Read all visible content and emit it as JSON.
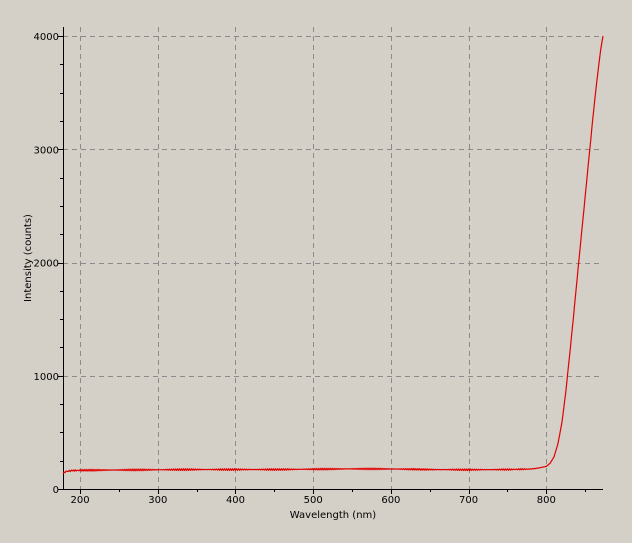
{
  "chart_data": {
    "type": "line",
    "title": "",
    "xlabel": "Wavelength (nm)",
    "ylabel": "Intensity (counts)",
    "xlim": [
      178,
      873
    ],
    "ylim": [
      0,
      4080
    ],
    "x_ticks": [
      200,
      300,
      400,
      500,
      600,
      700,
      800
    ],
    "y_ticks": [
      0,
      1000,
      2000,
      3000,
      4000
    ],
    "x_minor_step": 50,
    "y_minor_step": 250,
    "grid": true,
    "grid_style": "dashed",
    "legend": "none",
    "line_color": "#e00000",
    "background_color": "#d4d0c8",
    "series": [
      {
        "x": [
          178,
          182,
          190,
          200,
          250,
          300,
          350,
          400,
          450,
          500,
          550,
          600,
          650,
          700,
          750,
          780,
          790,
          800,
          805,
          810,
          815,
          820,
          825,
          830,
          835,
          840,
          845,
          850,
          855,
          860,
          865,
          870,
          873
        ],
        "y": [
          140,
          155,
          163,
          165,
          168,
          170,
          172,
          172,
          172,
          175,
          178,
          177,
          172,
          170,
          172,
          176,
          185,
          200,
          228,
          285,
          400,
          580,
          850,
          1180,
          1520,
          1880,
          2230,
          2580,
          2930,
          3280,
          3600,
          3880,
          4000
        ]
      }
    ]
  }
}
